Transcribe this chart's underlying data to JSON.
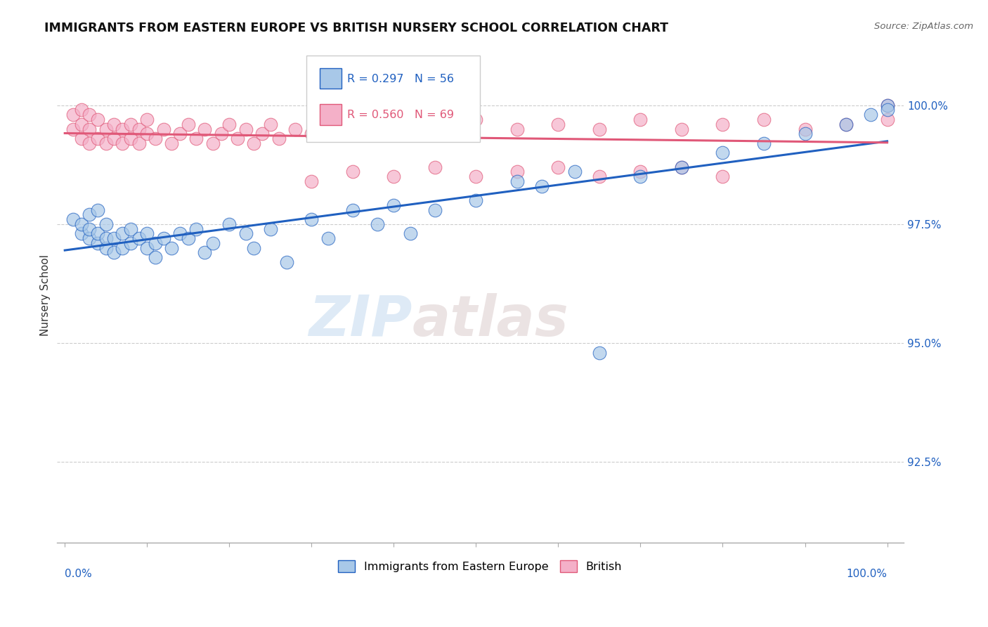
{
  "title": "IMMIGRANTS FROM EASTERN EUROPE VS BRITISH NURSERY SCHOOL CORRELATION CHART",
  "source": "Source: ZipAtlas.com",
  "ylabel": "Nursery School",
  "ytick_vals": [
    92.5,
    95.0,
    97.5,
    100.0
  ],
  "ylim": [
    90.8,
    101.2
  ],
  "xlim": [
    -0.01,
    1.02
  ],
  "legend_blue_R": "R = 0.297",
  "legend_blue_N": "N = 56",
  "legend_pink_R": "R = 0.560",
  "legend_pink_N": "N = 69",
  "color_blue": "#a8c8e8",
  "color_pink": "#f4b0c8",
  "trendline_blue": "#2060c0",
  "trendline_pink": "#e05878",
  "background": "#ffffff",
  "watermark_zip": "ZIP",
  "watermark_atlas": "atlas",
  "blue_x": [
    0.01,
    0.02,
    0.02,
    0.03,
    0.03,
    0.03,
    0.04,
    0.04,
    0.04,
    0.05,
    0.05,
    0.05,
    0.06,
    0.06,
    0.07,
    0.07,
    0.08,
    0.08,
    0.09,
    0.1,
    0.1,
    0.11,
    0.11,
    0.12,
    0.13,
    0.14,
    0.15,
    0.16,
    0.17,
    0.18,
    0.2,
    0.22,
    0.23,
    0.25,
    0.27,
    0.3,
    0.32,
    0.35,
    0.38,
    0.4,
    0.42,
    0.45,
    0.5,
    0.55,
    0.58,
    0.62,
    0.65,
    0.7,
    0.75,
    0.8,
    0.85,
    0.9,
    0.95,
    0.98,
    1.0,
    1.0
  ],
  "blue_y": [
    97.6,
    97.3,
    97.5,
    97.2,
    97.4,
    97.7,
    97.1,
    97.3,
    97.8,
    97.0,
    97.2,
    97.5,
    96.9,
    97.2,
    97.0,
    97.3,
    97.1,
    97.4,
    97.2,
    97.0,
    97.3,
    96.8,
    97.1,
    97.2,
    97.0,
    97.3,
    97.2,
    97.4,
    96.9,
    97.1,
    97.5,
    97.3,
    97.0,
    97.4,
    96.7,
    97.6,
    97.2,
    97.8,
    97.5,
    97.9,
    97.3,
    97.8,
    98.0,
    98.4,
    98.3,
    98.6,
    94.8,
    98.5,
    98.7,
    99.0,
    99.2,
    99.4,
    99.6,
    99.8,
    100.0,
    99.9
  ],
  "pink_x": [
    0.01,
    0.01,
    0.02,
    0.02,
    0.02,
    0.03,
    0.03,
    0.03,
    0.04,
    0.04,
    0.05,
    0.05,
    0.06,
    0.06,
    0.07,
    0.07,
    0.08,
    0.08,
    0.09,
    0.09,
    0.1,
    0.1,
    0.11,
    0.12,
    0.13,
    0.14,
    0.15,
    0.16,
    0.17,
    0.18,
    0.19,
    0.2,
    0.21,
    0.22,
    0.23,
    0.24,
    0.25,
    0.26,
    0.28,
    0.3,
    0.32,
    0.35,
    0.38,
    0.4,
    0.43,
    0.46,
    0.5,
    0.55,
    0.6,
    0.65,
    0.7,
    0.75,
    0.8,
    0.85,
    0.9,
    0.95,
    1.0,
    0.3,
    0.35,
    0.4,
    0.45,
    0.5,
    0.55,
    0.6,
    0.65,
    0.7,
    0.75,
    0.8,
    1.0
  ],
  "pink_y": [
    99.5,
    99.8,
    99.3,
    99.6,
    99.9,
    99.2,
    99.5,
    99.8,
    99.3,
    99.7,
    99.2,
    99.5,
    99.3,
    99.6,
    99.2,
    99.5,
    99.3,
    99.6,
    99.2,
    99.5,
    99.4,
    99.7,
    99.3,
    99.5,
    99.2,
    99.4,
    99.6,
    99.3,
    99.5,
    99.2,
    99.4,
    99.6,
    99.3,
    99.5,
    99.2,
    99.4,
    99.6,
    99.3,
    99.5,
    99.4,
    99.6,
    99.5,
    99.7,
    99.4,
    99.6,
    99.5,
    99.7,
    99.5,
    99.6,
    99.5,
    99.7,
    99.5,
    99.6,
    99.7,
    99.5,
    99.6,
    99.7,
    98.4,
    98.6,
    98.5,
    98.7,
    98.5,
    98.6,
    98.7,
    98.5,
    98.6,
    98.7,
    98.5,
    100.0
  ]
}
